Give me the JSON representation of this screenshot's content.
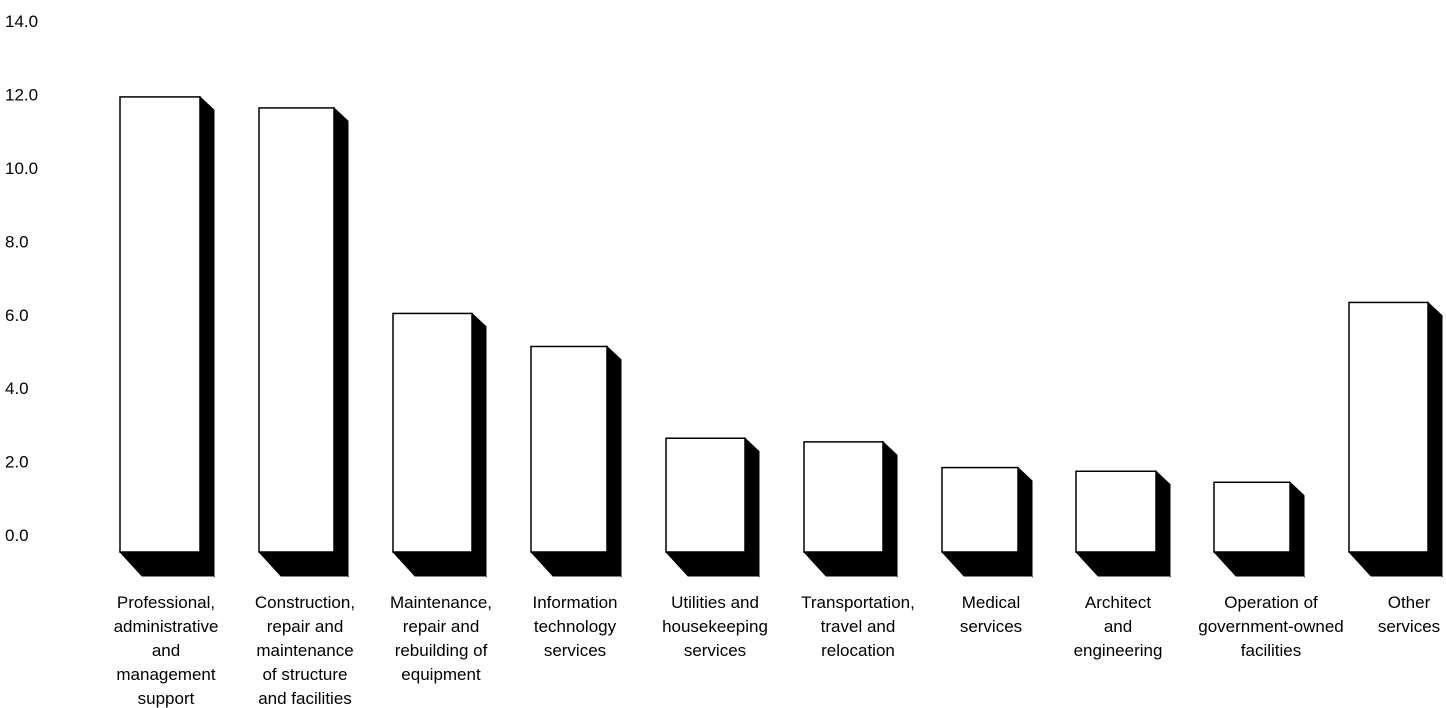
{
  "chart_data": {
    "type": "bar",
    "title": "",
    "xlabel": "",
    "ylabel": "",
    "ylim": [
      0,
      14
    ],
    "yticks": [
      "14.0",
      "12.0",
      "10.0",
      "8.0",
      "6.0",
      "4.0",
      "2.0",
      "0.0"
    ],
    "grid": false,
    "categories": [
      [
        "Professional,",
        "administrative",
        "and",
        "management",
        "support"
      ],
      [
        "Construction,",
        "repair and",
        "maintenance",
        "of structure",
        "and facilities"
      ],
      [
        "Maintenance,",
        "repair and",
        "rebuilding of",
        "equipment"
      ],
      [
        "Information",
        "technology",
        "services"
      ],
      [
        "Utilities and",
        "housekeeping",
        "services"
      ],
      [
        "Transportation,",
        "travel and",
        "relocation"
      ],
      [
        "Medical",
        "services"
      ],
      [
        "Architect",
        "and",
        "engineering"
      ],
      [
        "Operation of",
        "government-owned",
        "facilities"
      ],
      [
        "Other",
        "services"
      ]
    ],
    "values": [
      12.4,
      12.1,
      6.5,
      5.6,
      3.1,
      3.0,
      2.3,
      2.2,
      1.9,
      6.8
    ],
    "colors": {
      "face": "#ffffff",
      "shadow": "#000000",
      "outline": "#000000"
    }
  }
}
